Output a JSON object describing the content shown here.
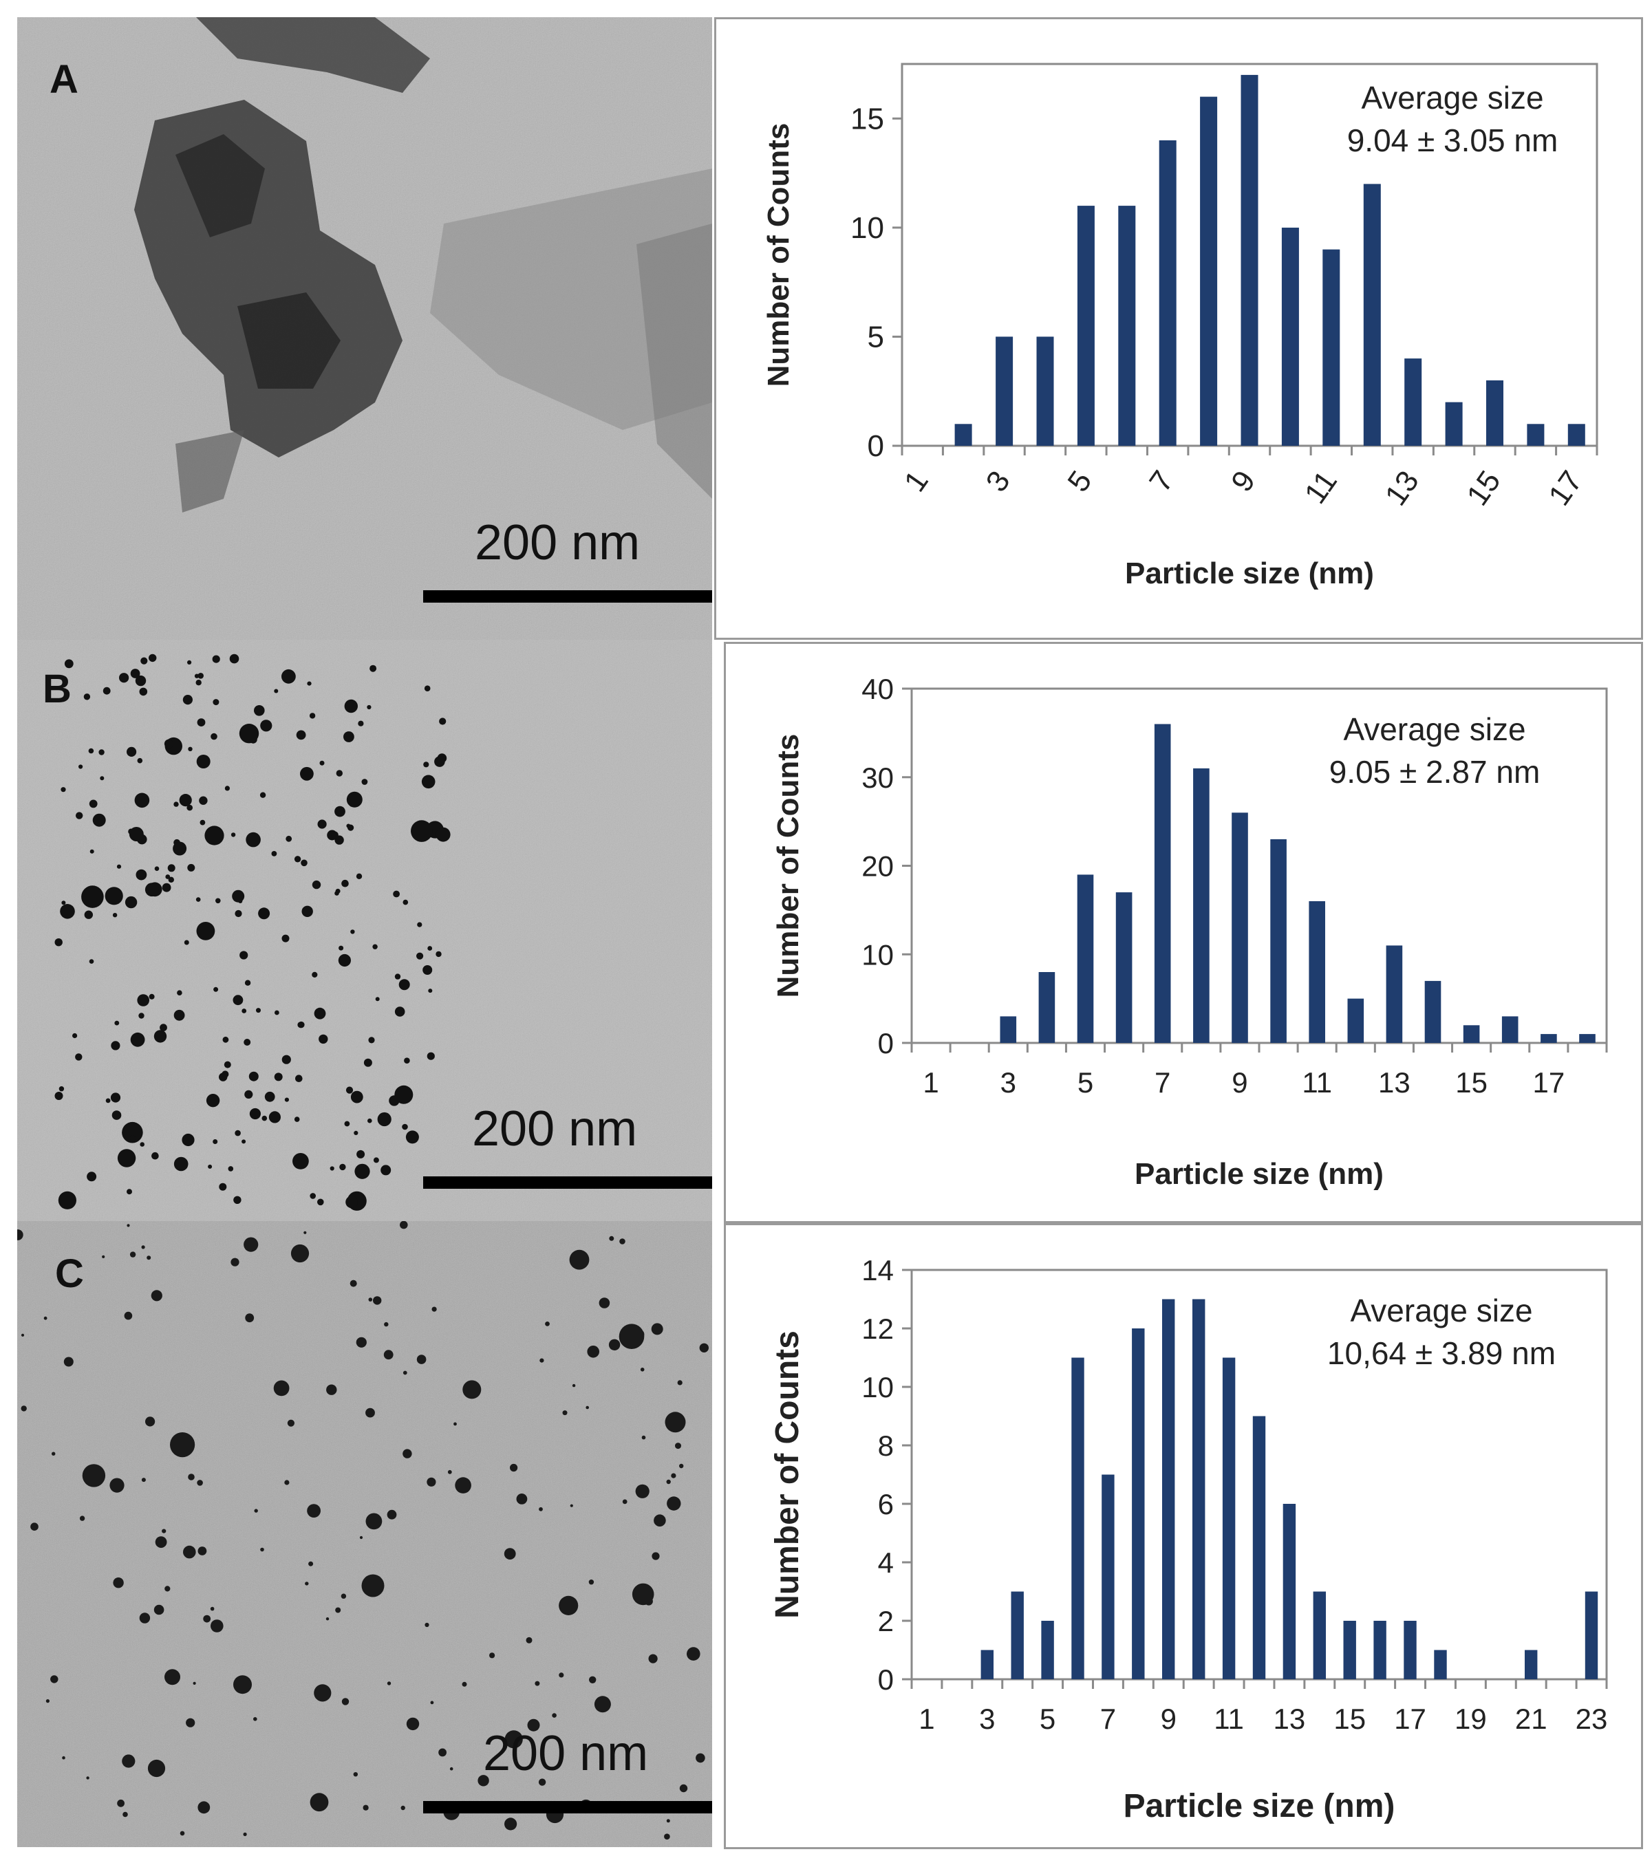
{
  "panels": [
    {
      "letter": "A",
      "scale_bar_label": "200 nm",
      "chart_data": {
        "type": "bar",
        "categories": [
          "1",
          "2",
          "3",
          "4",
          "5",
          "6",
          "7",
          "8",
          "9",
          "10",
          "11",
          "12",
          "13",
          "14",
          "15",
          "16",
          "17"
        ],
        "tick_labels": [
          "1",
          "3",
          "5",
          "7",
          "9",
          "11",
          "13",
          "15",
          "17"
        ],
        "values": [
          0,
          1,
          5,
          5,
          11,
          11,
          14,
          16,
          17,
          10,
          9,
          12,
          4,
          2,
          3,
          1,
          1
        ],
        "xlabel": "Particle size (nm)",
        "ylabel": "Number of Counts",
        "ylim": [
          0,
          17.5
        ],
        "yticks": [
          0,
          5,
          10,
          15
        ],
        "annotation": [
          "Average size",
          "9.04 ± 3.05 nm"
        ],
        "grid": false,
        "color": "#1f3d6e"
      }
    },
    {
      "letter": "B",
      "scale_bar_label": "200 nm",
      "chart_data": {
        "type": "bar",
        "categories": [
          "1",
          "2",
          "3",
          "4",
          "5",
          "6",
          "7",
          "8",
          "9",
          "10",
          "11",
          "12",
          "13",
          "14",
          "15",
          "16",
          "17",
          "18"
        ],
        "tick_labels": [
          "1",
          "3",
          "5",
          "7",
          "9",
          "11",
          "13",
          "15",
          "17"
        ],
        "values": [
          0,
          0,
          3,
          8,
          19,
          17,
          36,
          31,
          26,
          23,
          16,
          5,
          11,
          7,
          2,
          3,
          1,
          1
        ],
        "xlabel": "Particle size (nm)",
        "ylabel": "Number of Counts",
        "ylim": [
          0,
          40
        ],
        "yticks": [
          0,
          10,
          20,
          30,
          40
        ],
        "annotation": [
          "Average size",
          "9.05 ± 2.87 nm"
        ],
        "grid": false,
        "color": "#1f3d6e"
      }
    },
    {
      "letter": "C",
      "scale_bar_label": "200 nm",
      "chart_data": {
        "type": "bar",
        "categories": [
          "1",
          "2",
          "3",
          "4",
          "5",
          "6",
          "7",
          "8",
          "9",
          "10",
          "11",
          "12",
          "13",
          "14",
          "15",
          "16",
          "17",
          "18",
          "19",
          "20",
          "21",
          "22",
          "23"
        ],
        "tick_labels": [
          "1",
          "3",
          "5",
          "7",
          "9",
          "11",
          "13",
          "15",
          "17",
          "19",
          "21",
          "23"
        ],
        "values": [
          0,
          0,
          1,
          3,
          2,
          11,
          7,
          12,
          13,
          13,
          11,
          9,
          6,
          3,
          2,
          2,
          2,
          1,
          0,
          0,
          1,
          0,
          3
        ],
        "xlabel": "Particle size (nm)",
        "ylabel": "Number of Counts",
        "ylim": [
          0,
          14
        ],
        "yticks": [
          0,
          2,
          4,
          6,
          8,
          10,
          12,
          14
        ],
        "annotation": [
          "Average size",
          "10,64 ± 3.89 nm"
        ],
        "grid": false,
        "color": "#1f3d6e"
      }
    }
  ]
}
